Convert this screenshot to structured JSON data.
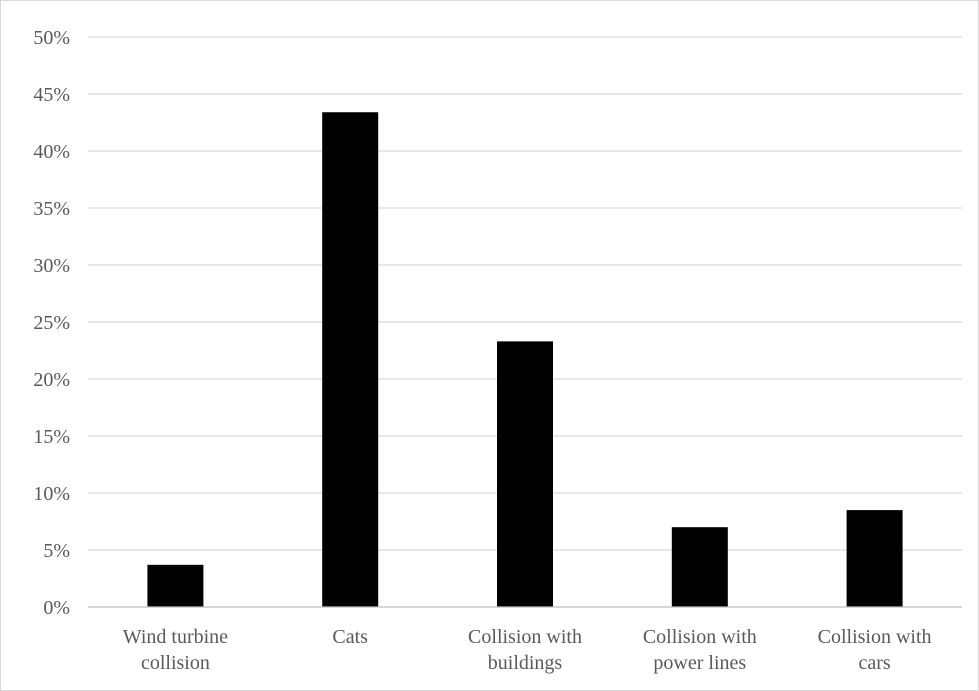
{
  "chart_data": {
    "type": "bar",
    "title": "",
    "xlabel": "",
    "ylabel": "",
    "categories": [
      [
        "Wind turbine",
        "collision"
      ],
      [
        "Cats"
      ],
      [
        "Collision with",
        "buildings"
      ],
      [
        "Collision with",
        "power lines"
      ],
      [
        "Collision with",
        "cars"
      ]
    ],
    "values": [
      3.7,
      43.4,
      23.3,
      7.0,
      8.5
    ],
    "ylim": [
      0,
      50
    ],
    "yticks": [
      0,
      5,
      10,
      15,
      20,
      25,
      30,
      35,
      40,
      45,
      50
    ],
    "ytick_format": "percent",
    "grid": true,
    "legend": "none",
    "colors": {
      "bar": "#000000",
      "grid": "#d9d9d9",
      "axis": "#bfbfbf",
      "text": "#595959"
    }
  }
}
